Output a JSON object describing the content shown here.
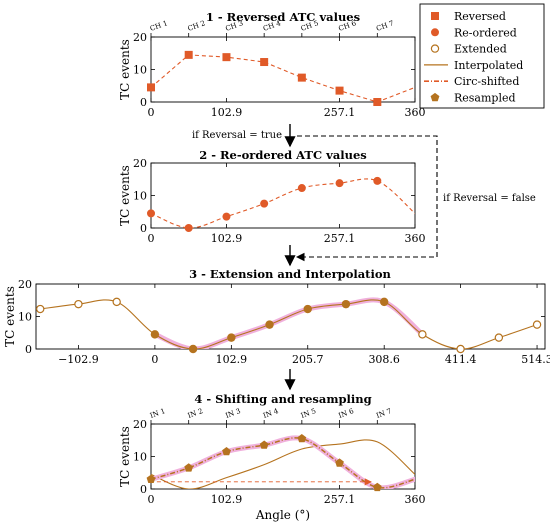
{
  "colors": {
    "marker": "#e05a28",
    "interp": "#b5731f",
    "highlight": "#f0b0dc",
    "arrow": "#000000"
  },
  "legend": {
    "items": [
      {
        "label": "Reversed",
        "marker": "square"
      },
      {
        "label": "Re-ordered",
        "marker": "circle"
      },
      {
        "label": "Extended",
        "marker": "open-circle"
      },
      {
        "label": "Interpolated",
        "marker": "line"
      },
      {
        "label": "Circ-shifted",
        "marker": "dashdot"
      },
      {
        "label": "Resampled",
        "marker": "pentagon"
      }
    ]
  },
  "flow": {
    "cond_true": "if Reversal = true",
    "cond_false": "if Reversal = false"
  },
  "chart_data": [
    {
      "type": "line",
      "title": "1 - Reversed ATC values",
      "ylabel": "TC events",
      "xlim": [
        0,
        360
      ],
      "ylim": [
        0,
        20
      ],
      "xticks": [
        "0",
        "102.9",
        "257.1",
        "360"
      ],
      "yticks": [
        "0",
        "10",
        "20"
      ],
      "top_labels": [
        "CH 1",
        "CH 2",
        "CH 3",
        "CH 4",
        "CH 5",
        "CH 6",
        "CH 7"
      ],
      "series": [
        {
          "name": "Reversed",
          "x": [
            0,
            51.4,
            102.9,
            154.3,
            205.7,
            257.1,
            308.6
          ],
          "y": [
            4.5,
            14.5,
            13.8,
            12.3,
            7.5,
            3.5,
            0
          ]
        }
      ]
    },
    {
      "type": "line",
      "title": "2 - Re-ordered ATC values",
      "ylabel": "TC events",
      "xlim": [
        0,
        360
      ],
      "ylim": [
        0,
        20
      ],
      "xticks": [
        "0",
        "102.9",
        "257.1",
        "360"
      ],
      "yticks": [
        "0",
        "10",
        "20"
      ],
      "series": [
        {
          "name": "Re-ordered",
          "x": [
            0,
            51.4,
            102.9,
            154.3,
            205.7,
            257.1,
            308.6
          ],
          "y": [
            4.5,
            0,
            3.5,
            7.5,
            12.3,
            13.8,
            14.5
          ]
        }
      ]
    },
    {
      "type": "line",
      "title": "3 - Extension and Interpolation",
      "ylabel": "TC events",
      "xlim": [
        -160,
        525
      ],
      "ylim": [
        0,
        20
      ],
      "xticks": [
        "−102.9",
        "0",
        "102.9",
        "205.7",
        "308.6",
        "411.4",
        "514.3"
      ],
      "yticks": [
        "0",
        "10",
        "20"
      ],
      "series": [
        {
          "name": "Re-ordered",
          "x": [
            0,
            51.4,
            102.9,
            154.3,
            205.7,
            257.1,
            308.6
          ],
          "y": [
            4.5,
            0,
            3.5,
            7.5,
            12.3,
            13.8,
            14.5
          ]
        },
        {
          "name": "Extended",
          "x": [
            -154.3,
            -102.9,
            -51.4,
            360,
            411.4,
            462.9,
            514.3
          ],
          "y": [
            12.3,
            13.8,
            14.5,
            4.5,
            0,
            3.5,
            7.5
          ]
        }
      ]
    },
    {
      "type": "line",
      "title": "4 - Shifting and resampling",
      "ylabel": "TC events",
      "xlabel": "Angle (°)",
      "xlim": [
        0,
        360
      ],
      "ylim": [
        0,
        20
      ],
      "xticks": [
        "0",
        "102.9",
        "257.1",
        "360"
      ],
      "yticks": [
        "0",
        "10",
        "20"
      ],
      "top_labels": [
        "IN 1",
        "IN 2",
        "IN 3",
        "IN 4",
        "IN 5",
        "IN 6",
        "IN 7"
      ],
      "series": [
        {
          "name": "Interpolated",
          "x": [
            0,
            51.4,
            102.9,
            154.3,
            205.7,
            257.1,
            308.6,
            360
          ],
          "y": [
            4.5,
            0,
            3.5,
            7.5,
            12.3,
            13.8,
            14.5,
            4.5
          ]
        },
        {
          "name": "Resampled",
          "x": [
            0,
            51.4,
            102.9,
            154.3,
            205.7,
            257.1,
            308.6
          ],
          "y": [
            3,
            6.5,
            11.5,
            13.5,
            15.5,
            8,
            0.5
          ]
        }
      ]
    }
  ]
}
